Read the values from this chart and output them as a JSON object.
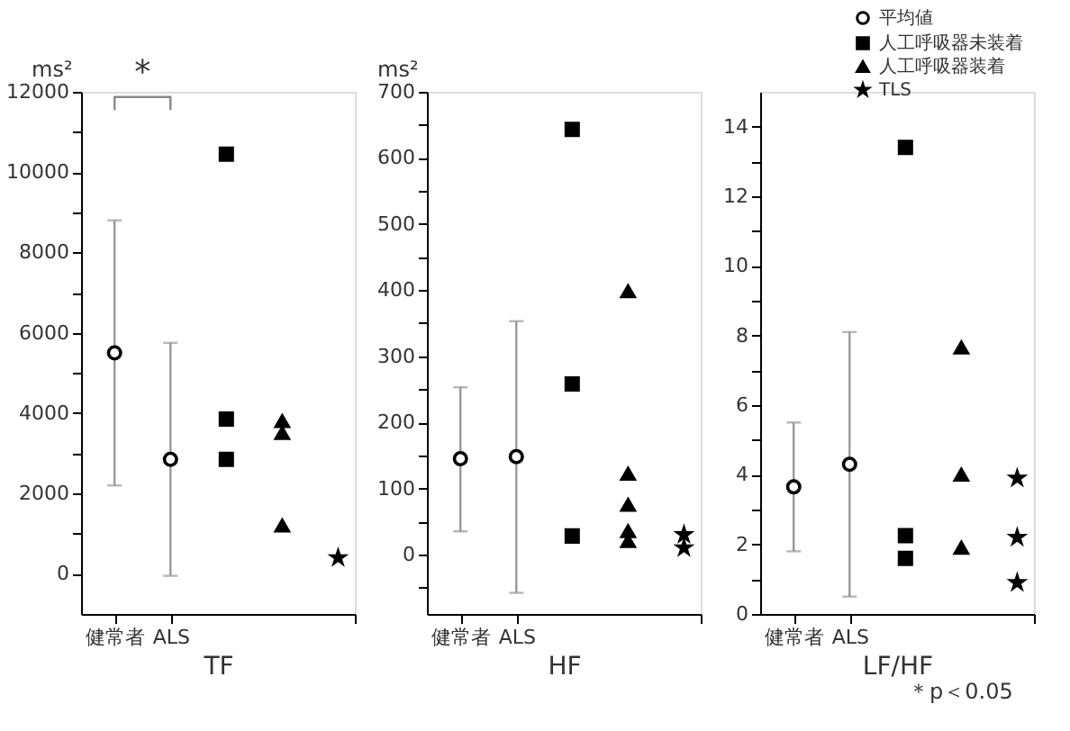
{
  "chart_data": [
    {
      "type": "scatter",
      "xlabel": "TF",
      "ylabel": "ms²",
      "grid": false,
      "legend": false,
      "categories": [
        "健常者",
        "ALS",
        null,
        null,
        null
      ],
      "ylim": [
        -1000,
        12000
      ],
      "yticks": [
        0,
        {
          "value": 1000,
          "label": null
        },
        2000,
        {
          "value": 3000,
          "label": null
        },
        4000,
        {
          "value": 5000,
          "label": null
        },
        6000,
        {
          "value": 7000,
          "label": null
        },
        8000,
        {
          "value": 9000,
          "label": null
        },
        10000,
        {
          "value": 11000,
          "label": null
        },
        12000
      ],
      "series": [
        {
          "marker": "circle",
          "color": "#ffffff",
          "values": [
            5500,
            2850,
            null,
            null,
            null
          ],
          "errors": [
            [
              2200,
              8800
            ],
            [
              -50,
              5750
            ],
            null,
            null,
            null
          ]
        },
        {
          "marker": "square",
          "color": "#000000",
          "values": [
            null,
            null,
            10450,
            null,
            null
          ]
        },
        {
          "marker": "square",
          "color": "#000000",
          "values": [
            null,
            null,
            3850,
            null,
            null
          ]
        },
        {
          "marker": "square",
          "color": "#000000",
          "values": [
            null,
            null,
            2850,
            null,
            null
          ]
        },
        {
          "marker": "triangle",
          "color": "#000000",
          "values": [
            null,
            null,
            null,
            3800,
            null
          ]
        },
        {
          "marker": "triangle",
          "color": "#000000",
          "values": [
            null,
            null,
            null,
            3500,
            null
          ]
        },
        {
          "marker": "triangle",
          "color": "#000000",
          "values": [
            null,
            null,
            null,
            1200,
            null
          ]
        },
        {
          "marker": "star",
          "color": "#000000",
          "values": [
            null,
            null,
            null,
            null,
            400
          ]
        }
      ],
      "annotations": [
        "*"
      ]
    },
    {
      "type": "scatter",
      "xlabel": "HF",
      "ylabel": "ms²",
      "grid": false,
      "legend": false,
      "categories": [
        "健常者",
        "ALS",
        null,
        null,
        null
      ],
      "ylim": [
        -90,
        700
      ],
      "yticks": [
        {
          "value": -50,
          "label": null
        },
        0,
        {
          "value": 50,
          "label": null
        },
        100,
        {
          "value": 150,
          "label": null
        },
        200,
        {
          "value": 250,
          "label": null
        },
        300,
        {
          "value": 350,
          "label": null
        },
        400,
        {
          "value": 450,
          "label": null
        },
        500,
        {
          "value": 550,
          "label": null
        },
        600,
        {
          "value": 650,
          "label": null
        },
        700
      ],
      "series": [
        {
          "marker": "circle",
          "color": "#ffffff",
          "values": [
            145,
            148,
            null,
            null,
            null
          ],
          "errors": [
            [
              35,
              253
            ],
            [
              -58,
              353
            ],
            null,
            null,
            null
          ]
        },
        {
          "marker": "square",
          "color": "#000000",
          "values": [
            null,
            null,
            643,
            null,
            null
          ]
        },
        {
          "marker": "square",
          "color": "#000000",
          "values": [
            null,
            null,
            258,
            null,
            null
          ]
        },
        {
          "marker": "square",
          "color": "#000000",
          "values": [
            null,
            null,
            28,
            null,
            null
          ]
        },
        {
          "marker": "triangle",
          "color": "#000000",
          "values": [
            null,
            null,
            null,
            398,
            null
          ]
        },
        {
          "marker": "triangle",
          "color": "#000000",
          "values": [
            null,
            null,
            null,
            122,
            null
          ]
        },
        {
          "marker": "triangle",
          "color": "#000000",
          "values": [
            null,
            null,
            null,
            75,
            null
          ]
        },
        {
          "marker": "triangle",
          "color": "#000000",
          "values": [
            null,
            null,
            null,
            35,
            null
          ]
        },
        {
          "marker": "triangle",
          "color": "#000000",
          "values": [
            null,
            null,
            null,
            20,
            null
          ]
        },
        {
          "marker": "star",
          "color": "#000000",
          "values": [
            null,
            null,
            null,
            null,
            30
          ]
        },
        {
          "marker": "star",
          "color": "#000000",
          "values": [
            null,
            null,
            null,
            null,
            10
          ]
        }
      ]
    },
    {
      "type": "scatter",
      "xlabel": "LF/HF",
      "grid": false,
      "legend": "top right",
      "categories": [
        "健常者",
        "ALS",
        null,
        null,
        null
      ],
      "ylim": [
        0,
        15
      ],
      "yticks": [
        0,
        {
          "value": 1,
          "label": null
        },
        2,
        {
          "value": 3,
          "label": null
        },
        4,
        {
          "value": 5,
          "label": null
        },
        6,
        {
          "value": 7,
          "label": null
        },
        8,
        {
          "value": 9,
          "label": null
        },
        10,
        {
          "value": 11,
          "label": null
        },
        12,
        {
          "value": 13,
          "label": null
        },
        14
      ],
      "series": [
        {
          "name": "平均値",
          "marker": "circle",
          "color": "#ffffff",
          "values": [
            3.65,
            4.3,
            null,
            null,
            null
          ],
          "errors": [
            [
              1.8,
              5.5
            ],
            [
              0.5,
              8.1
            ],
            null,
            null,
            null
          ]
        },
        {
          "name": "人工呼吸器未装着",
          "marker": "square",
          "color": "#000000",
          "values": [
            null,
            null,
            13.4,
            null,
            null
          ]
        },
        {
          "marker": "square",
          "color": "#000000",
          "values": [
            null,
            null,
            2.25,
            null,
            null
          ]
        },
        {
          "marker": "square",
          "color": "#000000",
          "values": [
            null,
            null,
            1.6,
            null,
            null
          ]
        },
        {
          "name": "人工呼吸器装着",
          "marker": "triangle",
          "color": "#000000",
          "values": [
            null,
            null,
            null,
            7.65,
            null
          ]
        },
        {
          "marker": "triangle",
          "color": "#000000",
          "values": [
            null,
            null,
            null,
            4.0,
            null
          ]
        },
        {
          "marker": "triangle",
          "color": "#000000",
          "values": [
            null,
            null,
            null,
            1.9,
            null
          ]
        },
        {
          "name": "TLS",
          "marker": "star",
          "color": "#000000",
          "values": [
            null,
            null,
            null,
            null,
            3.9
          ]
        },
        {
          "marker": "star",
          "color": "#000000",
          "values": [
            null,
            null,
            null,
            null,
            2.2
          ]
        },
        {
          "marker": "star",
          "color": "#000000",
          "values": [
            null,
            null,
            null,
            null,
            0.9
          ]
        }
      ],
      "annotations": [
        "＊p＜0.05"
      ]
    }
  ]
}
